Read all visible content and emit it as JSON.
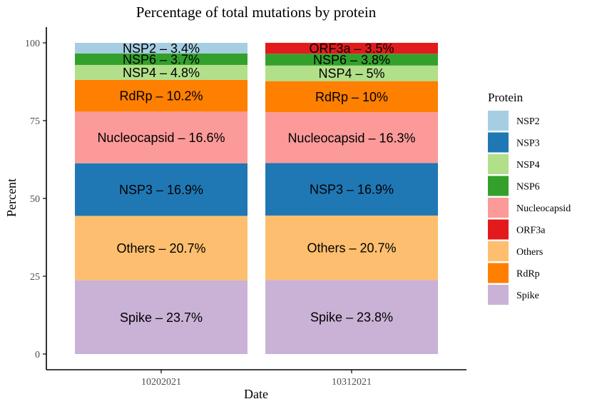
{
  "chart_data": {
    "type": "bar",
    "stacked": true,
    "title": "Percentage of total mutations by protein",
    "xlabel": "Date",
    "ylabel": "Percent",
    "ylim": [
      0,
      105
    ],
    "yticks": [
      0,
      25,
      50,
      75,
      100
    ],
    "yticklabels": [
      "0",
      "25",
      "50",
      "75",
      "100"
    ],
    "categories": [
      "10202021",
      "10312021"
    ],
    "grid": false,
    "legend": {
      "title": "Protein",
      "position": "right",
      "entries": [
        "NSP2",
        "NSP3",
        "NSP4",
        "NSP6",
        "Nucleocapsid",
        "ORF3a",
        "Others",
        "RdRp",
        "Spike"
      ]
    },
    "colors": {
      "NSP2": "#a6cee3",
      "NSP3": "#1f78b4",
      "NSP4": "#b2df8a",
      "NSP6": "#33a02c",
      "Nucleocapsid": "#fb9a99",
      "ORF3a": "#e31a1c",
      "Others": "#fdbf6f",
      "RdRp": "#ff7f00",
      "Spike": "#cab2d6"
    },
    "stacks": [
      {
        "category": "10202021",
        "segments": [
          {
            "protein": "Spike",
            "value": 23.7,
            "label": "Spike – 23.7%"
          },
          {
            "protein": "Others",
            "value": 20.7,
            "label": "Others – 20.7%"
          },
          {
            "protein": "NSP3",
            "value": 16.9,
            "label": "NSP3 – 16.9%"
          },
          {
            "protein": "Nucleocapsid",
            "value": 16.6,
            "label": "Nucleocapsid – 16.6%"
          },
          {
            "protein": "RdRp",
            "value": 10.2,
            "label": "RdRp – 10.2%"
          },
          {
            "protein": "NSP4",
            "value": 4.8,
            "label": "NSP4 – 4.8%"
          },
          {
            "protein": "NSP6",
            "value": 3.7,
            "label": "NSP6 – 3.7%"
          },
          {
            "protein": "NSP2",
            "value": 3.4,
            "label": "NSP2 – 3.4%"
          }
        ]
      },
      {
        "category": "10312021",
        "segments": [
          {
            "protein": "Spike",
            "value": 23.8,
            "label": "Spike – 23.8%"
          },
          {
            "protein": "Others",
            "value": 20.7,
            "label": "Others – 20.7%"
          },
          {
            "protein": "NSP3",
            "value": 16.9,
            "label": "NSP3 – 16.9%"
          },
          {
            "protein": "Nucleocapsid",
            "value": 16.3,
            "label": "Nucleocapsid – 16.3%"
          },
          {
            "protein": "RdRp",
            "value": 10,
            "label": "RdRp – 10%"
          },
          {
            "protein": "NSP4",
            "value": 5,
            "label": "NSP4 – 5%"
          },
          {
            "protein": "NSP6",
            "value": 3.8,
            "label": "NSP6 – 3.8%"
          },
          {
            "protein": "ORF3a",
            "value": 3.5,
            "label": "ORF3a – 3.5%"
          }
        ]
      }
    ]
  }
}
